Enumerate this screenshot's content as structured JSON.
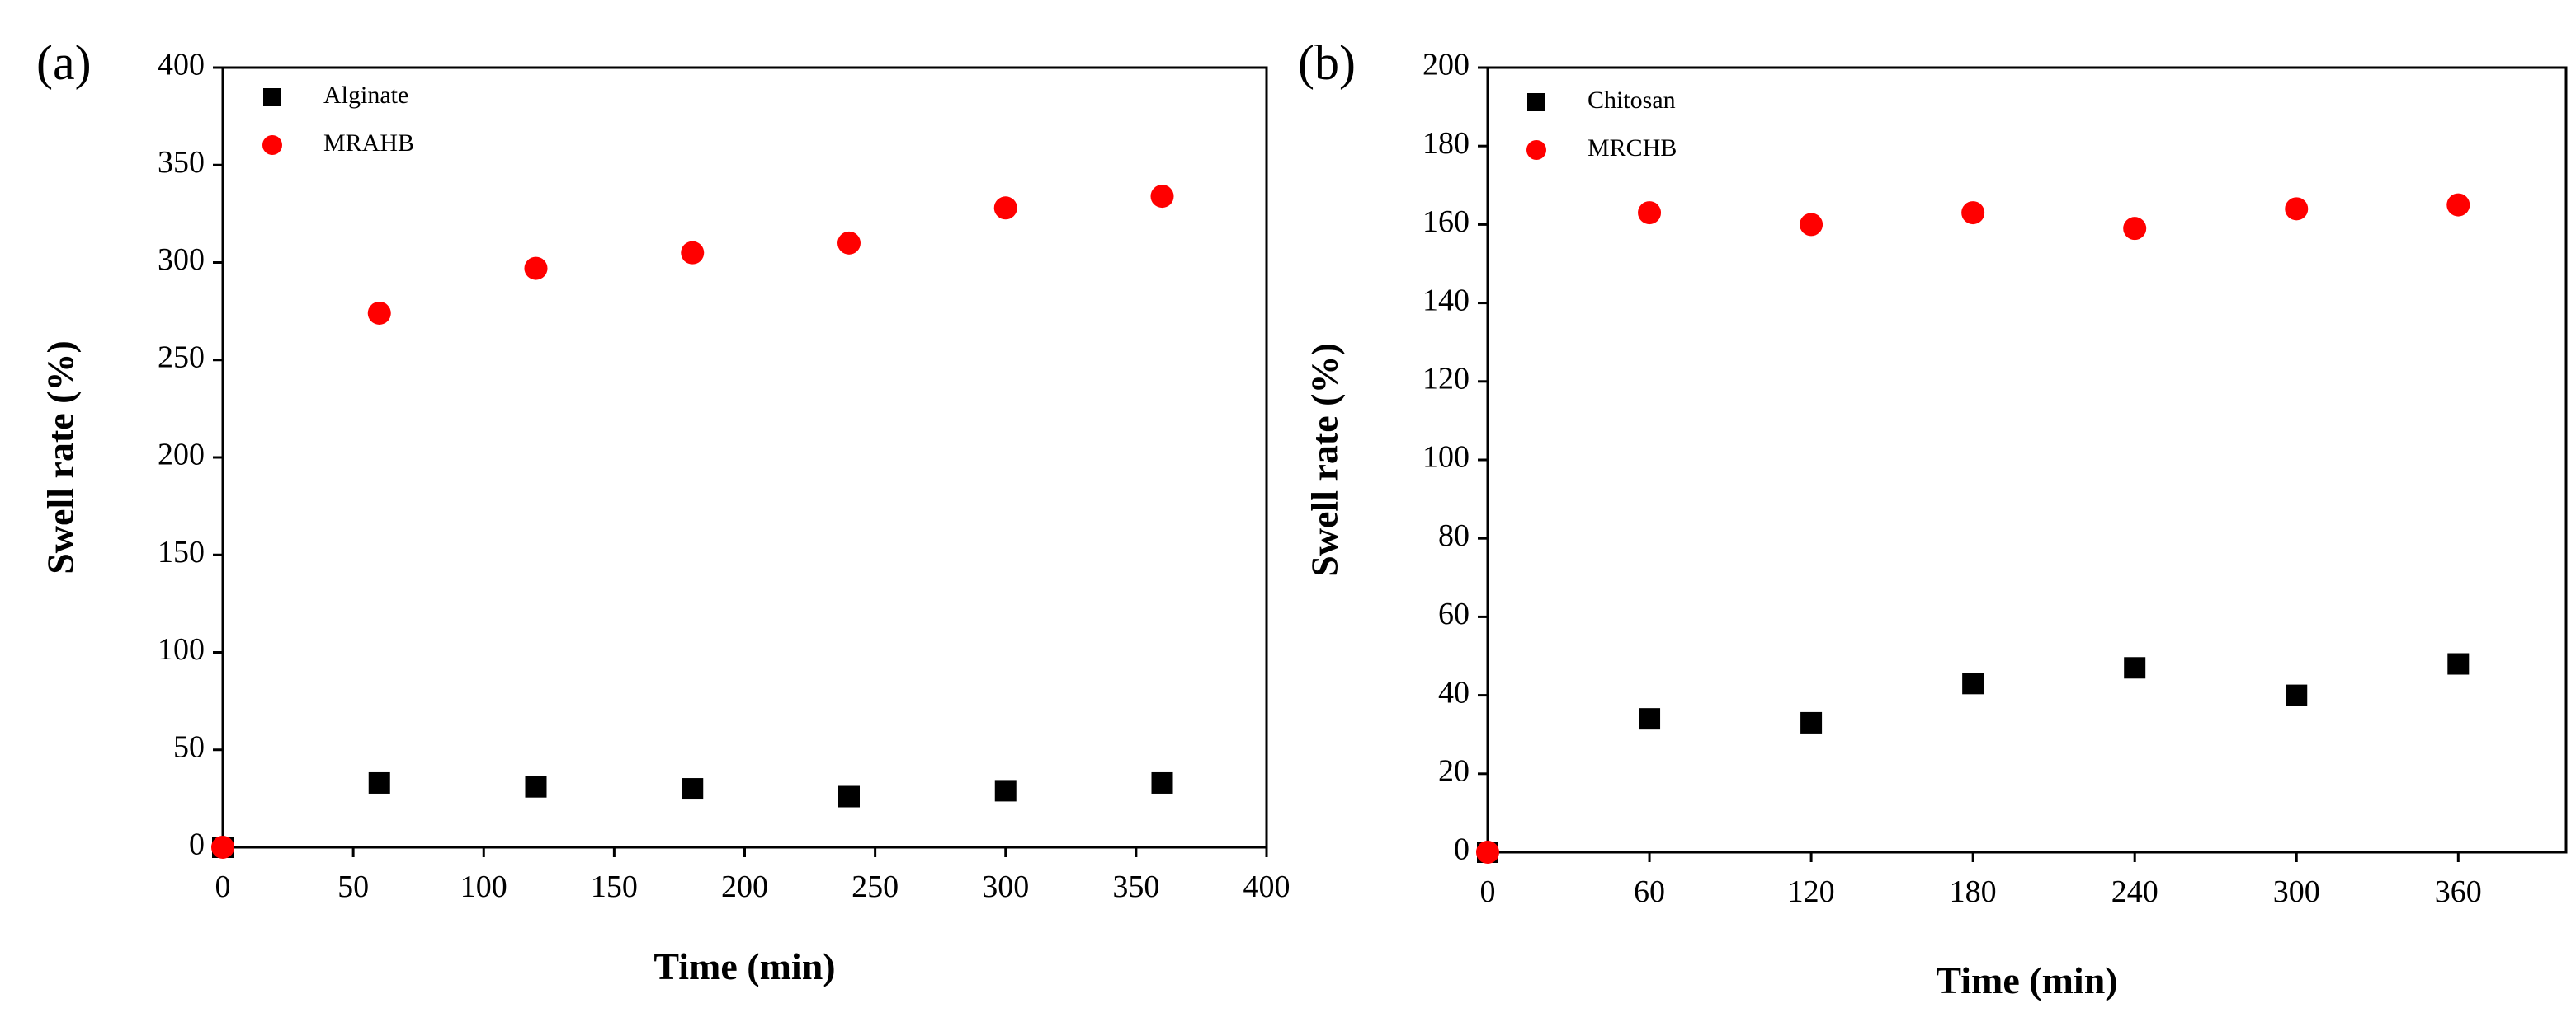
{
  "colors": {
    "series_square": "#000000",
    "series_circle": "#ff0000",
    "axis": "#000000",
    "background": "#ffffff"
  },
  "chart_data": [
    {
      "panel_label": "(a)",
      "type": "scatter",
      "title": "",
      "xlabel": "Time (min)",
      "ylabel": "Swell rate (%)",
      "xlim": [
        0,
        400
      ],
      "ylim": [
        0,
        400
      ],
      "xticks": [
        0,
        50,
        100,
        150,
        200,
        250,
        300,
        350,
        400
      ],
      "yticks": [
        0,
        50,
        100,
        150,
        200,
        250,
        300,
        350,
        400
      ],
      "grid": false,
      "legend_position": "top-left",
      "series": [
        {
          "name": "Alginate",
          "marker": "square",
          "color": "#000000",
          "x": [
            0,
            60,
            120,
            180,
            240,
            300,
            360
          ],
          "y": [
            0,
            33,
            31,
            30,
            26,
            29,
            33
          ]
        },
        {
          "name": "MRAHB",
          "marker": "circle",
          "color": "#ff0000",
          "x": [
            0,
            60,
            120,
            180,
            240,
            300,
            360
          ],
          "y": [
            0,
            274,
            297,
            305,
            310,
            328,
            334
          ]
        }
      ]
    },
    {
      "panel_label": "(b)",
      "type": "scatter",
      "title": "",
      "xlabel": "Time (min)",
      "ylabel": "Swell rate (%)",
      "xlim": [
        0,
        400
      ],
      "ylim": [
        0,
        200
      ],
      "xticks": [
        0,
        60,
        120,
        180,
        240,
        300,
        360
      ],
      "yticks": [
        0,
        20,
        40,
        60,
        80,
        100,
        120,
        140,
        160,
        180,
        200
      ],
      "grid": false,
      "legend_position": "top-left",
      "series": [
        {
          "name": "Chitosan",
          "marker": "square",
          "color": "#000000",
          "x": [
            0,
            60,
            120,
            180,
            240,
            300,
            360
          ],
          "y": [
            0,
            34,
            33,
            43,
            47,
            40,
            48
          ]
        },
        {
          "name": "MRCHB",
          "marker": "circle",
          "color": "#ff0000",
          "x": [
            0,
            60,
            120,
            180,
            240,
            300,
            360
          ],
          "y": [
            0,
            163,
            160,
            163,
            159,
            164,
            165
          ]
        }
      ]
    }
  ]
}
